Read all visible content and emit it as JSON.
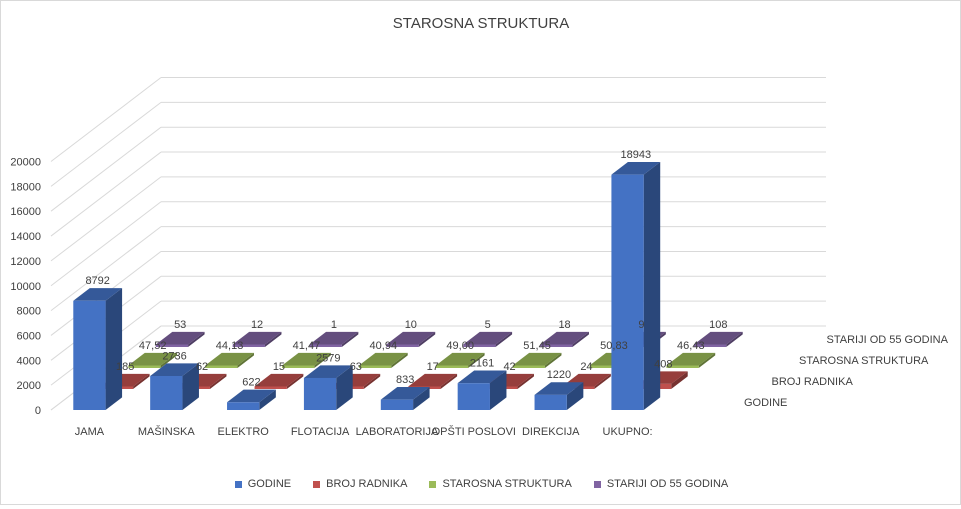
{
  "chart_data": {
    "type": "bar",
    "title": "STAROSNA STRUKTURA",
    "categories": [
      "JAMA",
      "MAŠINSKA",
      "ELEKTRO",
      "FLOTACIJA",
      "LABORATORIJA",
      "OPŠTI POSLOVI",
      "DIREKCIJA",
      "UKUPNO:"
    ],
    "series": [
      {
        "name": "GODINE",
        "color": "#4472C4",
        "values": [
          8792,
          2736,
          622,
          2579,
          833,
          2161,
          1220,
          18943
        ],
        "labels": [
          "8792",
          "2736",
          "622",
          "2579",
          "833",
          "2161",
          "1220",
          "18943"
        ]
      },
      {
        "name": "BROJ RADNIKA",
        "color": "#C0504D",
        "values": [
          185,
          62,
          15,
          63,
          17,
          42,
          24,
          408
        ],
        "labels": [
          "185",
          "62",
          "15",
          "63",
          "17",
          "42",
          "24",
          "408"
        ]
      },
      {
        "name": "STAROSNA STRUKTURA",
        "color": "#9BBB59",
        "values": [
          47.52,
          44.13,
          41.47,
          40.94,
          49.0,
          51.45,
          50.83,
          46.43
        ],
        "labels": [
          "47,52",
          "44,13",
          "41,47",
          "40,94",
          "49,00",
          "51,45",
          "50,83",
          "46,43"
        ]
      },
      {
        "name": "STARIJI OD 55 GODINA",
        "color": "#8064A2",
        "values": [
          53,
          12,
          1,
          10,
          5,
          18,
          9,
          108
        ],
        "labels": [
          "53",
          "12",
          "1",
          "10",
          "5",
          "18",
          "9",
          "108"
        ]
      }
    ],
    "depth_labels": [
      "GODINE",
      "BROJ RADNIKA",
      "STAROSNA STRUKTURA",
      "STARIJI OD 55 GODINA"
    ],
    "yticks": [
      "0",
      "2000",
      "4000",
      "6000",
      "8000",
      "10000",
      "12000",
      "14000",
      "16000",
      "18000",
      "20000"
    ],
    "ylim": [
      0,
      20000
    ],
    "grid": true,
    "legend_position": "bottom",
    "xlabel": "",
    "ylabel": ""
  }
}
